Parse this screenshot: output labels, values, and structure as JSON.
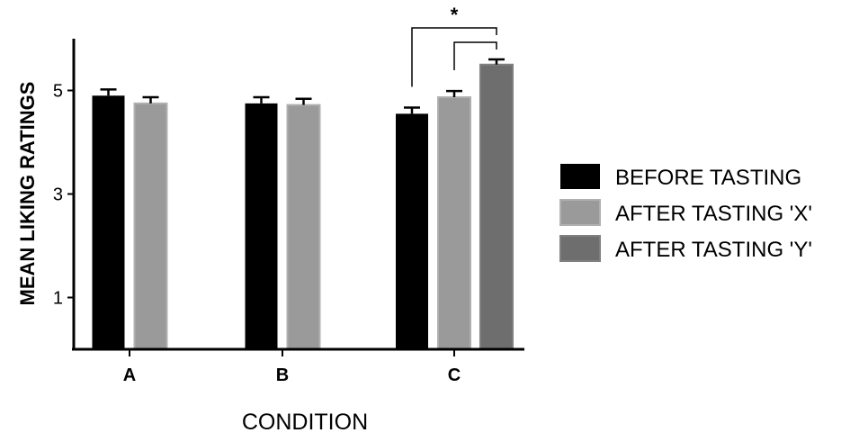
{
  "chart_data": {
    "type": "bar",
    "categories": [
      "A",
      "B",
      "C"
    ],
    "series": [
      {
        "name": "BEFORE TASTING",
        "values": [
          4.9,
          4.75,
          4.55
        ],
        "errors": [
          0.12,
          0.12,
          0.12
        ],
        "color": "#000000"
      },
      {
        "name": "AFTER TASTING 'X'",
        "values": [
          4.75,
          4.72,
          4.87
        ],
        "errors": [
          0.12,
          0.12,
          0.12
        ],
        "color": "#9a9a9a"
      },
      {
        "name": "AFTER TASTING 'Y'",
        "values": [
          null,
          null,
          5.5
        ],
        "errors": [
          null,
          null,
          0.1
        ],
        "color": "#6e6e6e"
      }
    ],
    "ylabel": "MEAN LIKING RATINGS",
    "xlabel": "CONDITION",
    "yticks": [
      1,
      3,
      5
    ],
    "ylim": [
      0,
      6
    ],
    "legend": "right",
    "grid": false,
    "significance": [
      {
        "category": "C",
        "from_series": 0,
        "to_series": 2,
        "label": "*"
      },
      {
        "category": "C",
        "from_series": 1,
        "to_series": 2,
        "label": ""
      }
    ]
  }
}
